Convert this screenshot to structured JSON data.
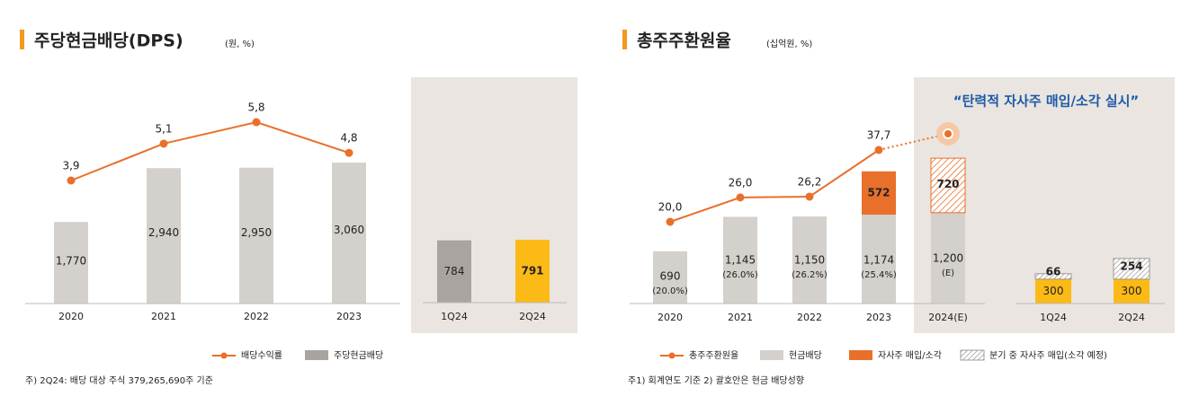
{
  "colors": {
    "orange": "#E8702A",
    "gray_bar": "#D4D0CC",
    "dark_gray_bar": "#A9A49F",
    "yellow": "#FBBA16",
    "shade": "#EAE5E0",
    "headline_blue": "#1C5BA8",
    "title_bar": "#F29A1E"
  },
  "chart_data": [
    {
      "type": "bar",
      "title": "주당현금배당(DPS)",
      "unit": "(원, %)",
      "categories": [
        "2020",
        "2021",
        "2022",
        "2023"
      ],
      "series": [
        {
          "name": "주당현금배당",
          "values": [
            1770,
            2940,
            2950,
            3060
          ]
        },
        {
          "name": "배당수익률",
          "type": "line",
          "values": [
            3.9,
            5.1,
            5.8,
            4.8
          ]
        }
      ],
      "bar_labels": [
        "1,770",
        "2,940",
        "2,950",
        "3,060"
      ],
      "line_labels": [
        "3,9",
        "5,1",
        "5,8",
        "4,8"
      ],
      "quarterly": {
        "categories": [
          "1Q24",
          "2Q24"
        ],
        "values": [
          784,
          791
        ],
        "labels": [
          "784",
          "791"
        ]
      },
      "ylim": [
        0,
        3900
      ],
      "legend": [
        "배당수익률",
        "주당현금배당"
      ],
      "footnote": "주) 2Q24: 배당 대상 주식 379,265,690주 기준"
    },
    {
      "type": "bar",
      "title": "총주주환원율",
      "unit": "(십억원, %)",
      "headline": "“탄력적 자사주 매입/소각 실시”",
      "categories": [
        "2020",
        "2021",
        "2022",
        "2023",
        "2024(E)"
      ],
      "series": [
        {
          "name": "현금배당",
          "values": [
            690,
            1145,
            1150,
            1174,
            1200
          ]
        },
        {
          "name": "자사주 매입/소각",
          "values": [
            0,
            0,
            0,
            572,
            0
          ]
        },
        {
          "name": "분기 중 자사주 매입(소각 예정)",
          "values": [
            0,
            0,
            0,
            0,
            720
          ]
        },
        {
          "name": "총주주환원율",
          "type": "line",
          "values": [
            20.0,
            26.0,
            26.2,
            37.7,
            null
          ]
        }
      ],
      "cash_labels": [
        "690",
        "1,145",
        "1,150",
        "1,174",
        "1,200"
      ],
      "cash_sublabels": [
        "(20.0%)",
        "(26.0%)",
        "(26.2%)",
        "(25.4%)",
        "(E)"
      ],
      "buyback_label": "572",
      "planned_label": "720",
      "line_labels": [
        "20,0",
        "26,0",
        "26,2",
        "37,7"
      ],
      "quarterly": {
        "categories": [
          "1Q24",
          "2Q24"
        ],
        "cash": [
          300,
          300
        ],
        "planned": [
          66,
          254
        ],
        "cash_labels": [
          "300",
          "300"
        ],
        "planned_labels": [
          "66",
          "254"
        ]
      },
      "ylim": [
        0,
        2600
      ],
      "legend": [
        "총주주환원율",
        "현금배당",
        "자사주 매입/소각",
        "분기 중 자사주 매입(소각 예정)"
      ],
      "footnote": "주1) 회계연도 기준   2) 괄호안은 현금 배당성향"
    }
  ]
}
